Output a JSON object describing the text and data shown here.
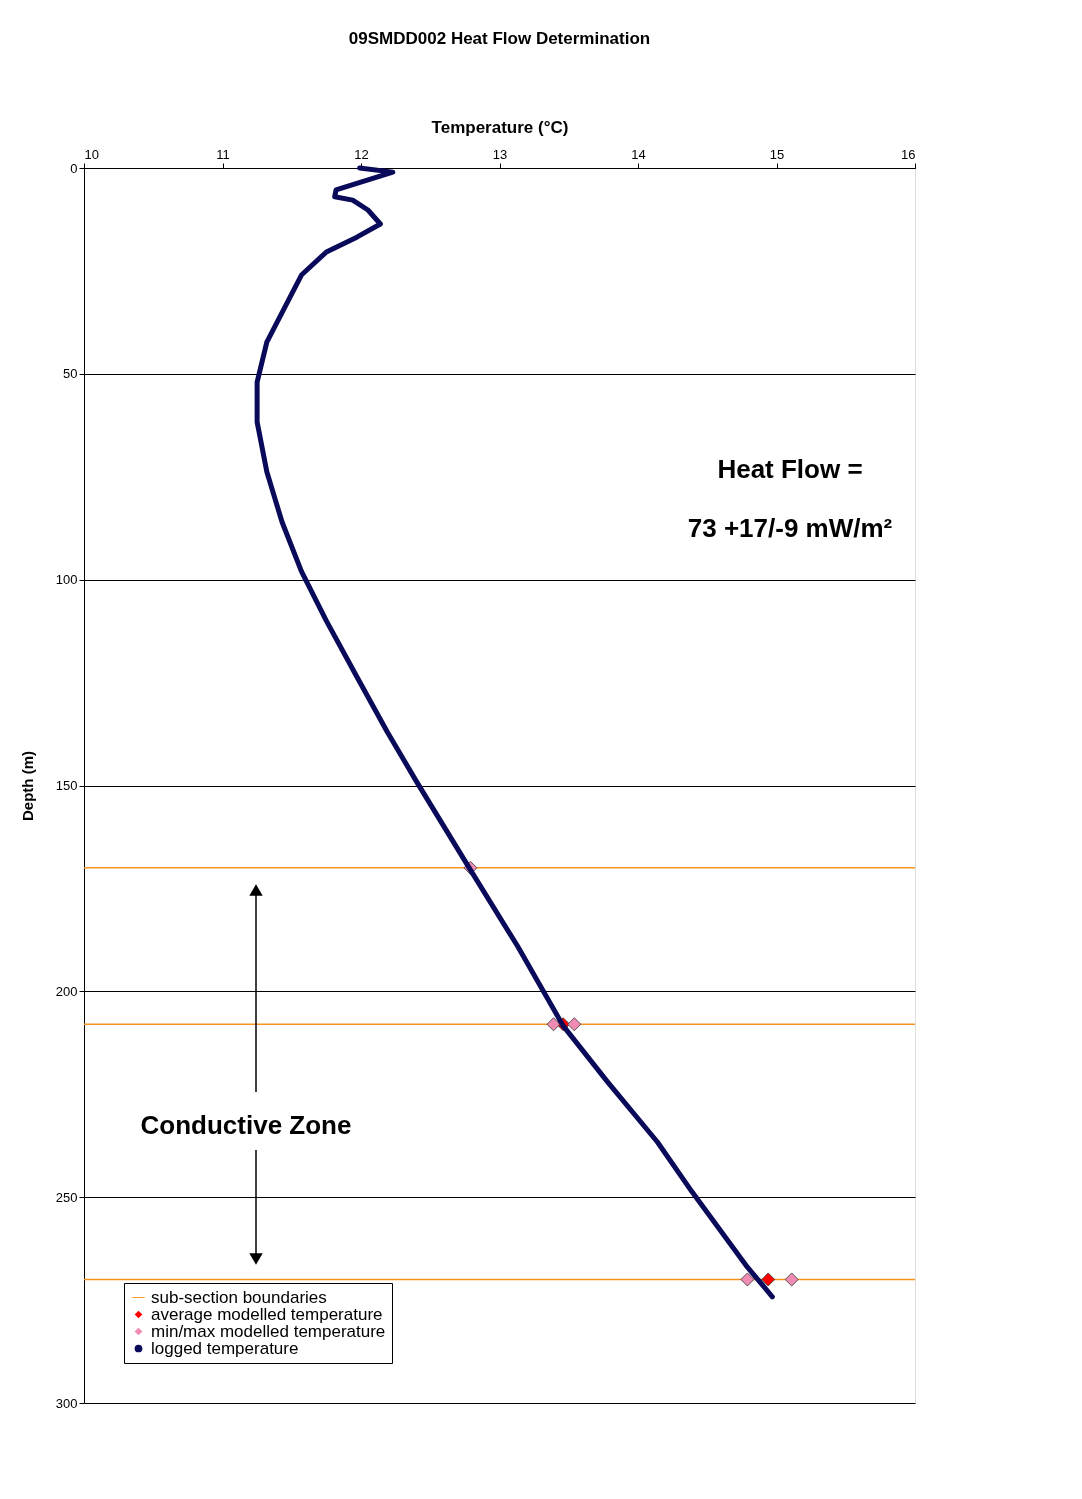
{
  "chart_data": {
    "type": "line",
    "title": "09SMDD002 Heat Flow Determination",
    "xlabel": "Temperature (°C)",
    "ylabel": "Depth (m)",
    "xlim": [
      10,
      16
    ],
    "xticks": [
      10,
      11,
      12,
      13,
      14,
      15,
      16
    ],
    "ylim": [
      300,
      0
    ],
    "yticks": [
      0,
      50,
      100,
      150,
      200,
      250,
      300
    ],
    "grid": "y",
    "legend": "bottom left",
    "ref_lines": [
      {
        "axis": "y",
        "value": 170,
        "label": "sub-section boundaries",
        "color": "#f7941d"
      },
      {
        "axis": "y",
        "value": 208,
        "color": "#f7941d"
      },
      {
        "axis": "y",
        "value": 270,
        "color": "#f7941d"
      }
    ],
    "series": [
      {
        "name": "average modelled temperature",
        "type": "scatter",
        "marker": "diamond",
        "color": "#ff0000",
        "x": [
          13.46,
          14.94
        ],
        "values": [
          208,
          270
        ]
      },
      {
        "name": "min/max modelled temperature",
        "type": "scatter",
        "marker": "diamond",
        "color": "#f08cb4",
        "x": [
          12.79,
          13.39,
          13.54,
          14.79,
          15.11
        ],
        "values": [
          170,
          208,
          208,
          270,
          270
        ]
      },
      {
        "name": "logged temperature",
        "color": "#0a0a5a",
        "x": [
          11.99,
          12.23,
          11.82,
          11.81,
          11.94,
          12.05,
          12.14,
          11.97,
          11.75,
          11.57,
          11.47,
          11.32,
          11.25,
          11.25,
          11.32,
          11.43,
          11.57,
          11.75,
          11.97,
          12.19,
          12.4,
          12.79,
          13.13,
          13.46,
          13.78,
          14.14,
          14.39,
          14.79,
          14.97
        ],
        "values": [
          0,
          1,
          5.3,
          7,
          7.8,
          10.2,
          13.6,
          16.8,
          20.4,
          26,
          32.5,
          42.3,
          52,
          61.7,
          73.8,
          86,
          98,
          110,
          123.6,
          137,
          149,
          170.5,
          189,
          208.4,
          222,
          236.6,
          248.7,
          267,
          274.2
        ]
      }
    ],
    "annotations": [
      "Heat Flow =",
      "73 +17/-9 mW/m²",
      "Conductive Zone"
    ]
  }
}
